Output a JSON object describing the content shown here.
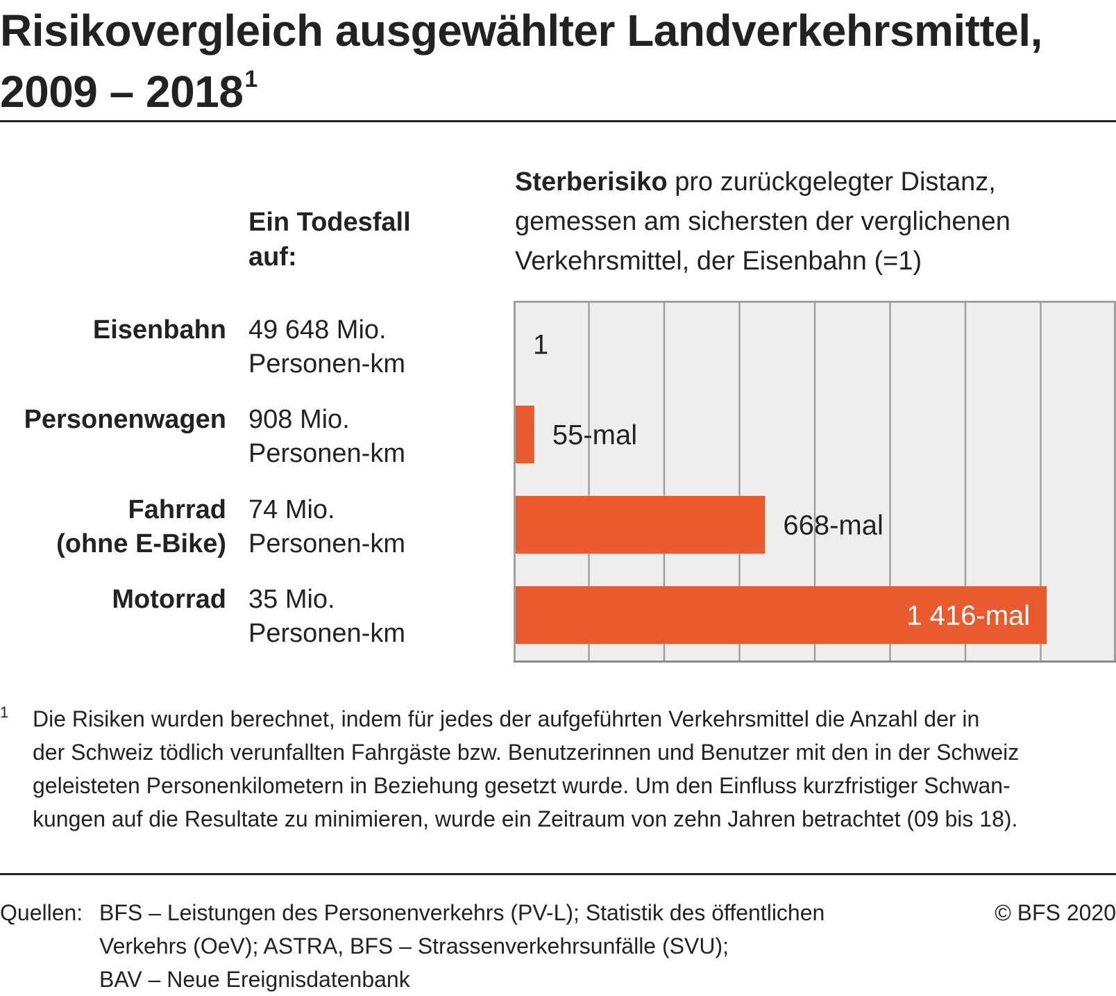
{
  "title": {
    "line1": "Risikovergleich ausgewählter Landverkehrsmittel,",
    "line2": "2009 – 2018",
    "footnote_ref": "1"
  },
  "table_header": {
    "line1": "Ein Todesfall",
    "line2": "auf:"
  },
  "chart_header": {
    "bold": "Sterberisiko",
    "line1_rest": " pro zurückgelegter Distanz,",
    "line2": "gemessen am sichersten der verglichenen",
    "line3": "Verkehrsmittel, der Eisenbahn (=1)"
  },
  "rows": [
    {
      "label1": "Eisenbahn",
      "label2": "",
      "value1": "49 648 Mio.",
      "value2": "Personen-km"
    },
    {
      "label1": "Personenwagen",
      "label2": "",
      "value1": "908 Mio.",
      "value2": "Personen-km"
    },
    {
      "label1": "Fahrrad",
      "label2": "(ohne E-Bike)",
      "value1": "74 Mio.",
      "value2": "Personen-km"
    },
    {
      "label1": "Motorrad",
      "label2": "",
      "value1": "35 Mio.",
      "value2": "Personen-km"
    }
  ],
  "chart_data": {
    "type": "bar",
    "orientation": "horizontal",
    "categories": [
      "Eisenbahn",
      "Personenwagen",
      "Fahrrad (ohne E-Bike)",
      "Motorrad"
    ],
    "values": [
      1,
      55,
      668,
      1416
    ],
    "data_labels": [
      "1",
      "55-mal",
      "668-mal",
      "1 416-mal"
    ],
    "xlim": [
      0,
      1600
    ],
    "grid": true,
    "bar_color": "#e95a2e",
    "background_color": "#eeeeee"
  },
  "footnote": {
    "mark": "1",
    "lines": [
      "Die Risiken wurden berechnet, indem für jedes der aufgeführten Verkehrsmittel die Anzahl der in",
      "der Schweiz tödlich verunfallten Fahrgäste bzw. Benutzerinnen und Benutzer mit den in der Schweiz",
      "geleisteten Personenkilometern in Beziehung gesetzt wurde. Um den Einfluss kurzfristiger Schwan-",
      "kungen auf die Resultate zu minimieren, wurde ein Zeitraum von zehn Jahren betrachtet (09 bis 18)."
    ]
  },
  "sources": {
    "label": "Quellen:",
    "lines": [
      "BFS – Leistungen des Personenverkehrs (PV-L); Statistik des öffentlichen",
      "Verkehrs (OeV); ASTRA, BFS – Strassenverkehrsunfälle (SVU);",
      "BAV – Neue Ereignisdatenbank"
    ]
  },
  "copyright": "© BFS 2020"
}
